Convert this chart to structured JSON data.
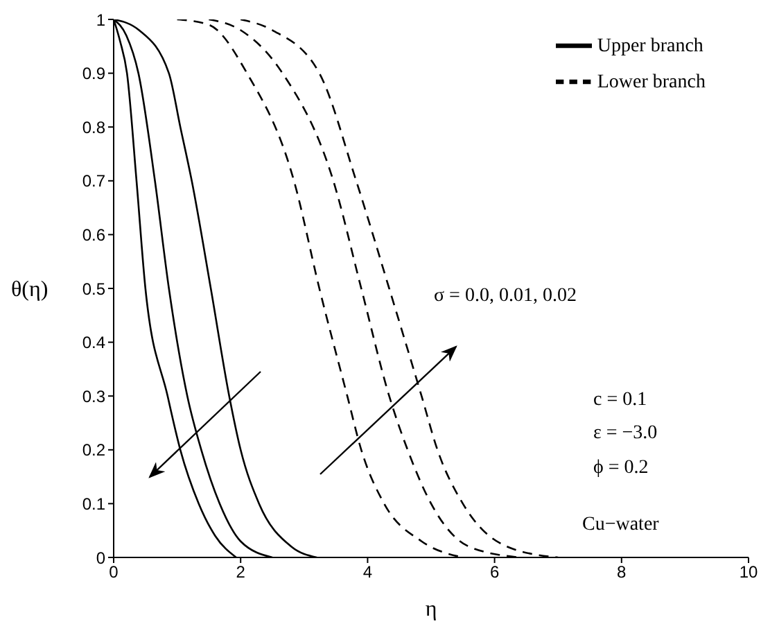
{
  "chart_data": {
    "type": "line",
    "xlabel": "η",
    "ylabel": "θ(η)",
    "xlim": [
      0,
      10
    ],
    "xticks": [
      0,
      2,
      4,
      6,
      8,
      10
    ],
    "ylim": [
      0,
      1
    ],
    "yticks": [
      0,
      0.1,
      0.2,
      0.3,
      0.4,
      0.5,
      0.6,
      0.7,
      0.8,
      0.9,
      1
    ],
    "grid": false,
    "legend": "top right",
    "marker": "none",
    "annotations": [
      "σ = 0.0, 0.01, 0.02",
      "c = 0.1",
      "ε = −3.0",
      "ϕ = 0.2",
      "Cu−water"
    ],
    "series": [
      {
        "name": "Upper branch",
        "color": "#000000",
        "line_style": "solid",
        "x": [
          0,
          0.1,
          0.21,
          0.36,
          0.5,
          0.85,
          1.05,
          1.34,
          1.6,
          1.93
        ],
        "values": [
          1,
          0.96,
          0.9,
          0.7,
          0.5,
          0.3,
          0.2,
          0.1,
          0.04,
          0
        ]
      },
      {
        "color": "#000000",
        "line_style": "solid",
        "x": [
          0,
          0.2,
          0.39,
          0.65,
          0.87,
          1.16,
          1.38,
          1.67,
          2.0,
          2.5
        ],
        "values": [
          1,
          0.97,
          0.9,
          0.7,
          0.5,
          0.3,
          0.2,
          0.1,
          0.03,
          0
        ]
      },
      {
        "color": "#000000",
        "line_style": "solid",
        "x": [
          0,
          0.4,
          0.87,
          1.05,
          1.23,
          1.53,
          1.82,
          2.0,
          2.29,
          2.8,
          3.2
        ],
        "values": [
          1,
          0.98,
          0.9,
          0.8,
          0.7,
          0.5,
          0.3,
          0.2,
          0.1,
          0.02,
          0
        ]
      },
      {
        "name": "Lower branch",
        "color": "#000000",
        "line_style": "dashed",
        "x": [
          1,
          1.5,
          2.1,
          2.84,
          3.24,
          3.68,
          3.9,
          4.26,
          4.85,
          5.5
        ],
        "values": [
          1,
          0.99,
          0.9,
          0.7,
          0.5,
          0.3,
          0.2,
          0.1,
          0.03,
          0
        ]
      },
      {
        "color": "#000000",
        "line_style": "dashed",
        "x": [
          1.5,
          2.0,
          2.66,
          3.46,
          3.9,
          4.34,
          4.63,
          5.0,
          5.6,
          6.4
        ],
        "values": [
          1,
          0.98,
          0.9,
          0.7,
          0.5,
          0.3,
          0.2,
          0.1,
          0.02,
          0
        ]
      },
      {
        "color": "#000000",
        "line_style": "dashed",
        "x": [
          2,
          2.5,
          3.24,
          3.82,
          4.34,
          4.85,
          5.1,
          5.5,
          6.2,
          7
        ],
        "values": [
          1,
          0.98,
          0.9,
          0.7,
          0.5,
          0.3,
          0.2,
          0.1,
          0.02,
          0
        ]
      }
    ]
  }
}
